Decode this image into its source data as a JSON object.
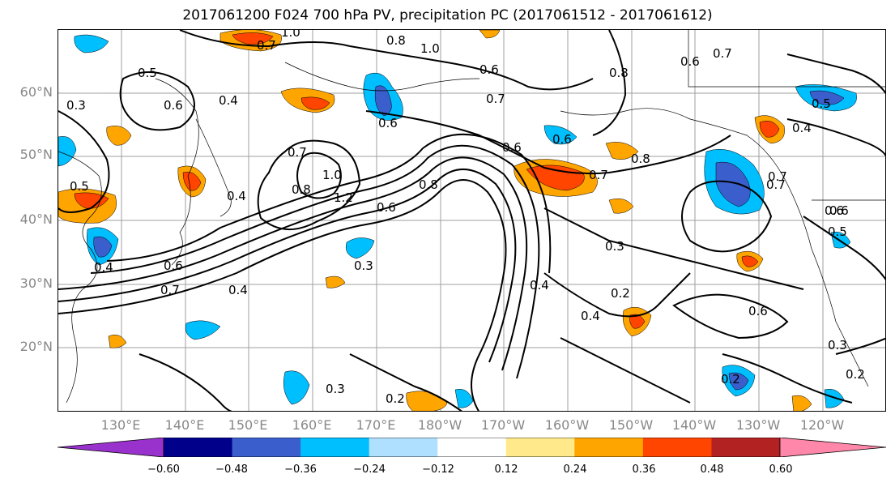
{
  "title": "2017061200 F024 700 hPa PV, precipitation PC (2017061512 - 2017061612)",
  "lat_labels": [
    "60°N",
    "50°N",
    "40°N",
    "30°N",
    "20°N"
  ],
  "lon_labels": [
    "130°E",
    "140°E",
    "150°E",
    "160°E",
    "170°E",
    "180°W",
    "170°W",
    "160°W",
    "150°W",
    "140°W",
    "130°W",
    "120°W"
  ],
  "contour_labels": [
    "1.0",
    "0.7",
    "0.8",
    "1.0",
    "0.5",
    "0.3",
    "0.6",
    "0.4",
    "0.6",
    "0.7",
    "0.8",
    "1.0",
    "1.2",
    "0.6",
    "0.8",
    "0.6",
    "0.6",
    "0.7",
    "0.8",
    "0.7",
    "0.6",
    "0.3",
    "0.4",
    "0.2",
    "0.4",
    "0.6",
    "0.3",
    "0.2",
    "0.2",
    "0.3",
    "0.2",
    "0.4",
    "0.7",
    "0.4",
    "0.6",
    "0.5",
    "0.4",
    "0.7",
    "0.6",
    "0.3",
    "0.5",
    "0.7",
    "0.7",
    "0.6",
    "0.8",
    "0.4",
    "0.5",
    "0.6"
  ],
  "colorbar": {
    "colors": [
      "#9932cc",
      "#00008b",
      "#3a5fcd",
      "#00bfff",
      "#b0e0ff",
      "#ffffff",
      "#ffe98a",
      "#ffa500",
      "#ff4500",
      "#b22222",
      "#ff88aa"
    ],
    "ticks": [
      "−0.60",
      "−0.48",
      "−0.36",
      "−0.24",
      "−0.12",
      "0.12",
      "0.24",
      "0.36",
      "0.48",
      "0.60"
    ]
  },
  "colors": {
    "positive_fill": "#ffa500",
    "positive_strong": "#ff4500",
    "negative_fill": "#00bfff",
    "negative_strong": "#3a5fcd",
    "gridline": "#888888",
    "contour": "#000000"
  }
}
